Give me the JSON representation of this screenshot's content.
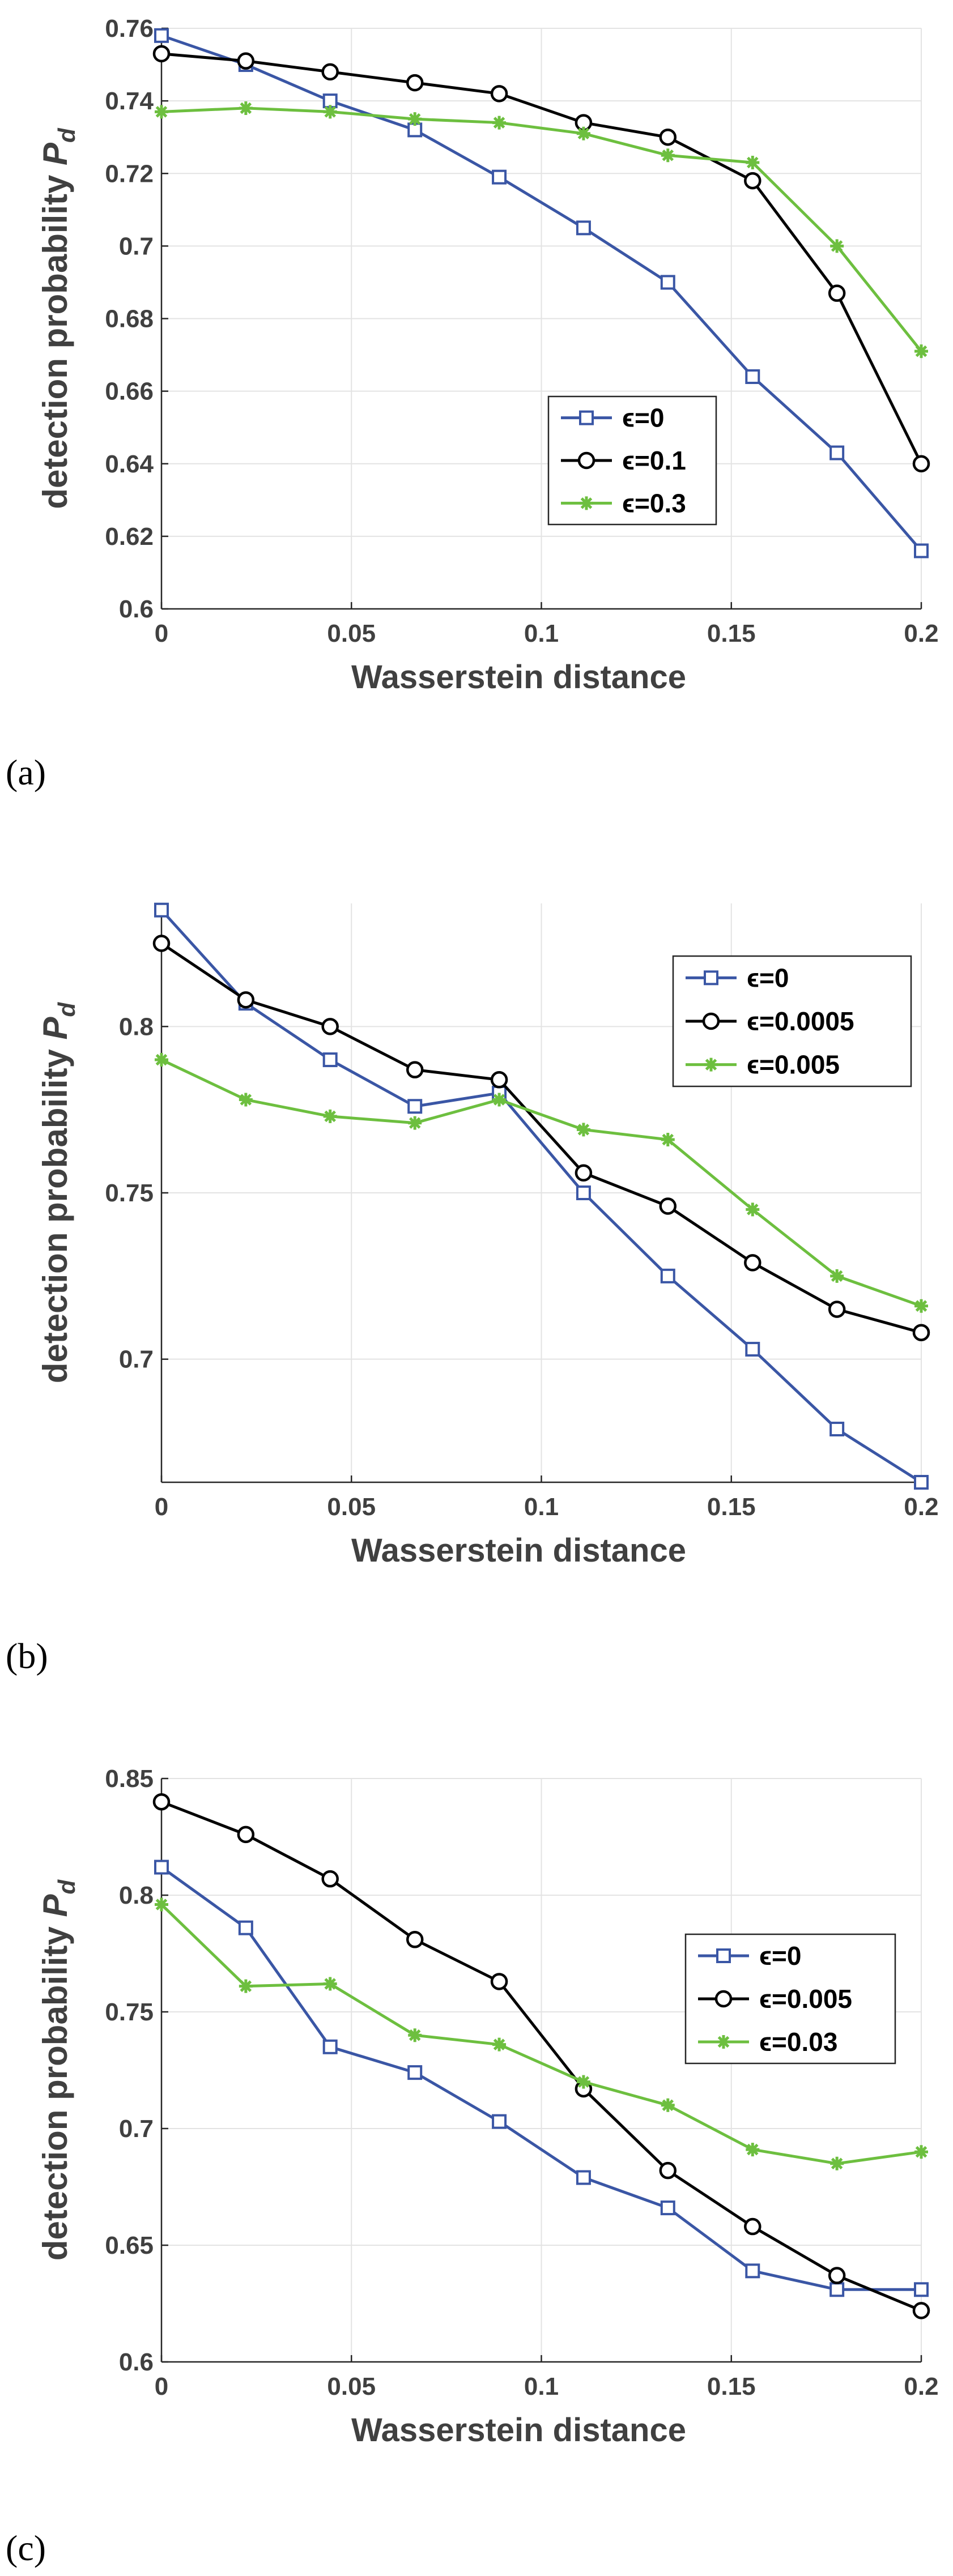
{
  "chart_data": [
    {
      "type": "line",
      "panel_label": "(a)",
      "xlabel": "Wasserstein distance",
      "ylabel": "detection probability ",
      "ylabel_symbol": "P",
      "ylabel_sub": "d",
      "x": [
        0,
        0.0222,
        0.0444,
        0.0667,
        0.0889,
        0.1111,
        0.1333,
        0.1556,
        0.1778,
        0.2
      ],
      "xlim": [
        0,
        0.2
      ],
      "ylim": [
        0.6,
        0.76
      ],
      "xticks": [
        0,
        0.05,
        0.1,
        0.15,
        0.2
      ],
      "xtick_labels": [
        "0",
        "0.05",
        "0.1",
        "0.15",
        "0.2"
      ],
      "yticks": [
        0.6,
        0.62,
        0.64,
        0.66,
        0.68,
        0.7,
        0.72,
        0.74,
        0.76
      ],
      "ytick_labels": [
        "0.6",
        "0.62",
        "0.64",
        "0.66",
        "0.68",
        "0.7",
        "0.72",
        "0.74",
        "0.76"
      ],
      "grid": true,
      "legend_position": "center-right",
      "series": [
        {
          "name": "ϵ=0",
          "color": "#3a56a5",
          "marker": "square",
          "values": [
            0.758,
            0.75,
            0.74,
            0.732,
            0.719,
            0.705,
            0.69,
            0.664,
            0.643,
            0.616
          ]
        },
        {
          "name": "ϵ=0.1",
          "color": "#000000",
          "marker": "circle",
          "values": [
            0.753,
            0.751,
            0.748,
            0.745,
            0.742,
            0.734,
            0.73,
            0.718,
            0.687,
            0.64
          ]
        },
        {
          "name": "ϵ=0.3",
          "color": "#6dbf3f",
          "marker": "star",
          "values": [
            0.737,
            0.738,
            0.737,
            0.735,
            0.734,
            0.731,
            0.725,
            0.723,
            0.7,
            0.671
          ]
        }
      ]
    },
    {
      "type": "line",
      "panel_label": "(b)",
      "xlabel": "Wasserstein distance",
      "ylabel": "detection probability ",
      "ylabel_symbol": "P",
      "ylabel_sub": "d",
      "x": [
        0,
        0.0222,
        0.0444,
        0.0667,
        0.0889,
        0.1111,
        0.1333,
        0.1556,
        0.1778,
        0.2
      ],
      "xlim": [
        0,
        0.2
      ],
      "ylim": [
        0.663,
        0.837
      ],
      "xticks": [
        0,
        0.05,
        0.1,
        0.15,
        0.2
      ],
      "xtick_labels": [
        "0",
        "0.05",
        "0.1",
        "0.15",
        "0.2"
      ],
      "yticks": [
        0.7,
        0.75,
        0.8
      ],
      "ytick_labels": [
        "0.7",
        "0.75",
        "0.8"
      ],
      "grid": true,
      "legend_position": "top-right",
      "series": [
        {
          "name": "ϵ=0",
          "color": "#3a56a5",
          "marker": "square",
          "values": [
            0.835,
            0.807,
            0.79,
            0.776,
            0.78,
            0.75,
            0.725,
            0.703,
            0.679,
            0.663
          ]
        },
        {
          "name": "ϵ=0.0005",
          "color": "#000000",
          "marker": "circle",
          "values": [
            0.825,
            0.808,
            0.8,
            0.787,
            0.784,
            0.756,
            0.746,
            0.729,
            0.715,
            0.708
          ]
        },
        {
          "name": "ϵ=0.005",
          "color": "#6dbf3f",
          "marker": "star",
          "values": [
            0.79,
            0.778,
            0.773,
            0.771,
            0.778,
            0.769,
            0.766,
            0.745,
            0.725,
            0.716
          ]
        }
      ]
    },
    {
      "type": "line",
      "panel_label": "(c)",
      "xlabel": "Wasserstein distance",
      "ylabel": "detection probability ",
      "ylabel_symbol": "P",
      "ylabel_sub": "d",
      "x": [
        0,
        0.0222,
        0.0444,
        0.0667,
        0.0889,
        0.1111,
        0.1333,
        0.1556,
        0.1778,
        0.2
      ],
      "xlim": [
        0,
        0.2
      ],
      "ylim": [
        0.6,
        0.85
      ],
      "xticks": [
        0,
        0.05,
        0.1,
        0.15,
        0.2
      ],
      "xtick_labels": [
        "0",
        "0.05",
        "0.1",
        "0.15",
        "0.2"
      ],
      "yticks": [
        0.6,
        0.65,
        0.7,
        0.75,
        0.8,
        0.85
      ],
      "ytick_labels": [
        "0.6",
        "0.65",
        "0.7",
        "0.75",
        "0.8",
        "0.85"
      ],
      "grid": true,
      "legend_position": "center-right",
      "series": [
        {
          "name": "ϵ=0",
          "color": "#3a56a5",
          "marker": "square",
          "values": [
            0.812,
            0.786,
            0.735,
            0.724,
            0.703,
            0.679,
            0.666,
            0.639,
            0.631,
            0.631
          ]
        },
        {
          "name": "ϵ=0.005",
          "color": "#000000",
          "marker": "circle",
          "values": [
            0.84,
            0.826,
            0.807,
            0.781,
            0.763,
            0.717,
            0.682,
            0.658,
            0.637,
            0.622
          ]
        },
        {
          "name": "ϵ=0.03",
          "color": "#6dbf3f",
          "marker": "star",
          "values": [
            0.796,
            0.761,
            0.762,
            0.74,
            0.736,
            0.72,
            0.71,
            0.691,
            0.685,
            0.69
          ]
        }
      ]
    }
  ]
}
